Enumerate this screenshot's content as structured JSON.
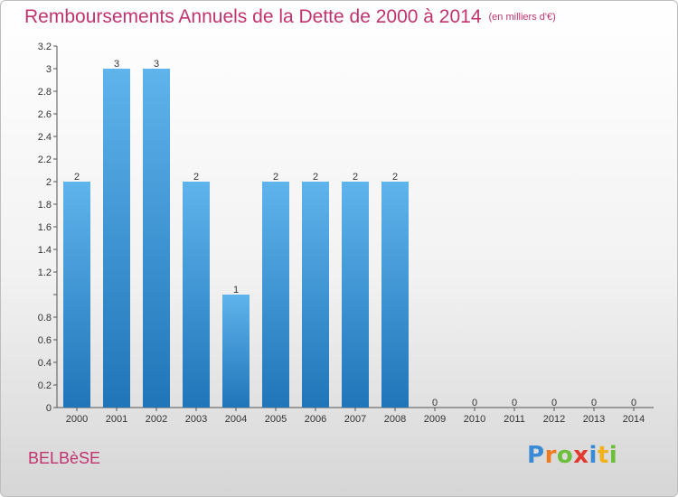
{
  "title": "Remboursements Annuels de la Dette de 2000 à 2014",
  "unit": "(en milliers d'€)",
  "commune": "BELBèSE",
  "logo": {
    "letters": [
      "P",
      "r",
      "o",
      "x",
      "i",
      "t",
      "i"
    ],
    "colors": [
      "#3a8ad6",
      "#f07a1e",
      "#6cbf3a",
      "#e23a2f",
      "#3a8ad6",
      "#f2b21b",
      "#6cbf3a"
    ]
  },
  "colors": {
    "bar_top": "#5fb4ec",
    "bar_bottom": "#1f75b8",
    "title": "#c0336f"
  },
  "chart_data": {
    "type": "bar",
    "categories": [
      "2000",
      "2001",
      "2002",
      "2003",
      "2004",
      "2005",
      "2006",
      "2007",
      "2008",
      "2009",
      "2010",
      "2011",
      "2012",
      "2013",
      "2014"
    ],
    "values": [
      2,
      3,
      3,
      2,
      1,
      2,
      2,
      2,
      2,
      0,
      0,
      0,
      0,
      0,
      0
    ],
    "data_labels": [
      "2",
      "3",
      "3",
      "2",
      "1",
      "2",
      "2",
      "2",
      "2",
      "0",
      "0",
      "0",
      "0",
      "0",
      "0"
    ],
    "yticks": [
      0,
      0.2,
      0.4,
      0.6,
      0.8,
      1,
      1.2,
      1.4,
      1.6,
      1.8,
      2,
      2.2,
      2.4,
      2.6,
      2.8,
      3,
      3.2
    ],
    "ytick_labels": [
      "0",
      "0.2",
      "0.4",
      "0.6",
      "0.8",
      "",
      "1.2",
      "1.4",
      "1.6",
      "1.8",
      "2",
      "2.2",
      "2.4",
      "2.6",
      "2.8",
      "3",
      "3.2"
    ],
    "ylim": [
      0,
      3.2
    ],
    "title": "Remboursements Annuels de la Dette de 2000 à 2014",
    "xlabel": "",
    "ylabel": "",
    "grid": false,
    "legend": "none"
  }
}
